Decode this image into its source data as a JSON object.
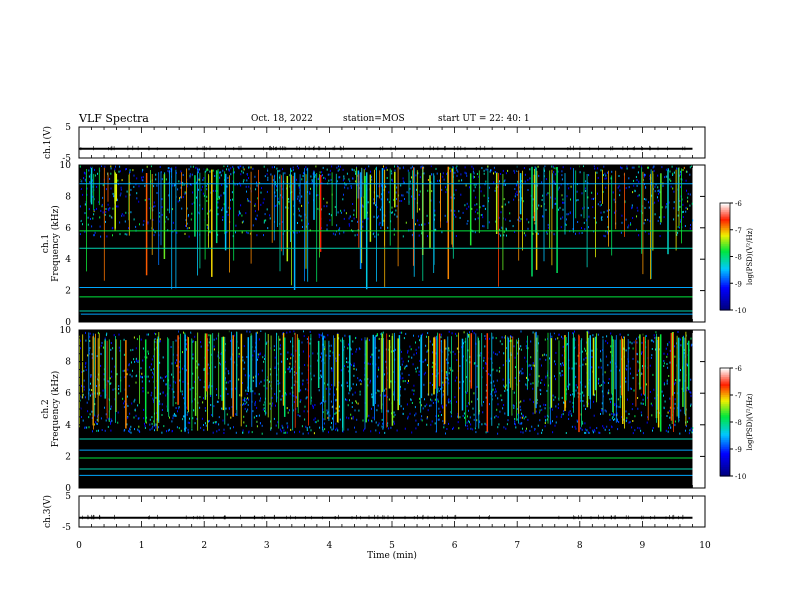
{
  "header": {
    "title": "VLF Spectra",
    "date": "Oct. 18, 2022",
    "station": "station=MOS",
    "start_ut": "start  UT =   22: 40: 1"
  },
  "chart_data": [
    {
      "type": "line",
      "panel": "channel-1-waveform",
      "ylabel": "ch.1(V)",
      "ylim": [
        -5,
        5
      ],
      "yticks": [
        "5",
        "-5"
      ],
      "x": [
        0,
        9.8
      ],
      "y": [
        -2,
        -2
      ],
      "color": "#000000"
    },
    {
      "type": "heatmap",
      "panel": "channel-1-spectrogram",
      "ylabel": "ch.1\nFrequency (kHz)",
      "ylim": [
        0,
        10
      ],
      "yticks": [
        "0",
        "2",
        "4",
        "6",
        "8",
        "10"
      ],
      "xlim": [
        0,
        10
      ],
      "data_extent_min": 9.8,
      "line_bands_khz": [
        0.5,
        0.7,
        1.6,
        2.2,
        4.7,
        5.8,
        8.8
      ],
      "activity_band_khz": [
        5.5,
        10
      ],
      "colorbar": {
        "label": "log(PSD)(V²/Hz)",
        "range": [
          -10,
          -6
        ],
        "ticks": [
          "-6",
          "-7",
          "-8",
          "-9",
          "-10"
        ]
      }
    },
    {
      "type": "heatmap",
      "panel": "channel-2-spectrogram",
      "ylabel": "ch.2\nFrequency (kHz)",
      "ylim": [
        0,
        10
      ],
      "yticks": [
        "0",
        "2",
        "4",
        "6",
        "8",
        "10"
      ],
      "xlim": [
        0,
        10
      ],
      "data_extent_min": 9.8,
      "line_bands_khz": [
        0.8,
        1.2,
        1.9,
        2.4,
        3.1
      ],
      "activity_band_khz": [
        3.5,
        10
      ],
      "colorbar": {
        "label": "log(PSD)(V²/Hz)",
        "range": [
          -10,
          -6
        ],
        "ticks": [
          "-6",
          "-7",
          "-8",
          "-9",
          "-10"
        ]
      }
    },
    {
      "type": "line",
      "panel": "channel-3-waveform",
      "ylabel": "ch.3(V)",
      "ylim": [
        -5,
        5
      ],
      "yticks": [
        "5",
        "-5"
      ],
      "x": [
        0,
        9.8
      ],
      "y": [
        -2,
        -2
      ],
      "color": "#000000"
    }
  ],
  "x_axis": {
    "label": "Time (min)",
    "range": [
      0,
      10
    ],
    "ticks": [
      "0",
      "1",
      "2",
      "3",
      "4",
      "5",
      "6",
      "7",
      "8",
      "9",
      "10"
    ]
  }
}
